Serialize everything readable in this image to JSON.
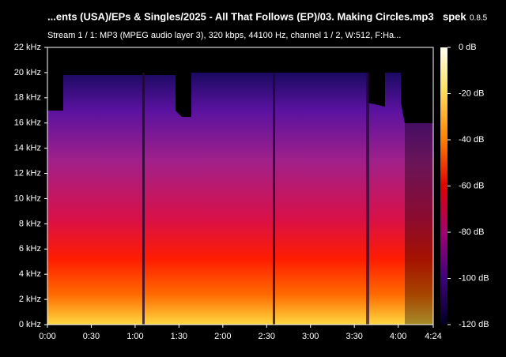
{
  "header": {
    "title": "...ents (USA)/EPs & Singles/2025 - All That Follows (EP)/03. Making Circles.mp3",
    "app": "spek",
    "version": "0.8.5"
  },
  "subtitle": "Stream 1 / 1: MP3 (MPEG audio layer 3), 320 kbps, 44100 Hz, channel 1 / 2, W:512, F:Ha...",
  "frequency_axis": [
    "0 kHz",
    "2 kHz",
    "4 kHz",
    "6 kHz",
    "8 kHz",
    "10 kHz",
    "12 kHz",
    "14 kHz",
    "16 kHz",
    "18 kHz",
    "20 kHz",
    "22 kHz"
  ],
  "time_axis": [
    "0:00",
    "0:30",
    "1:00",
    "1:30",
    "2:00",
    "2:30",
    "3:00",
    "3:30",
    "4:00",
    "4:24"
  ],
  "level_axis": [
    "0 dB",
    "-20 dB",
    "-40 dB",
    "-60 dB",
    "-80 dB",
    "-100 dB",
    "-120 dB"
  ]
}
